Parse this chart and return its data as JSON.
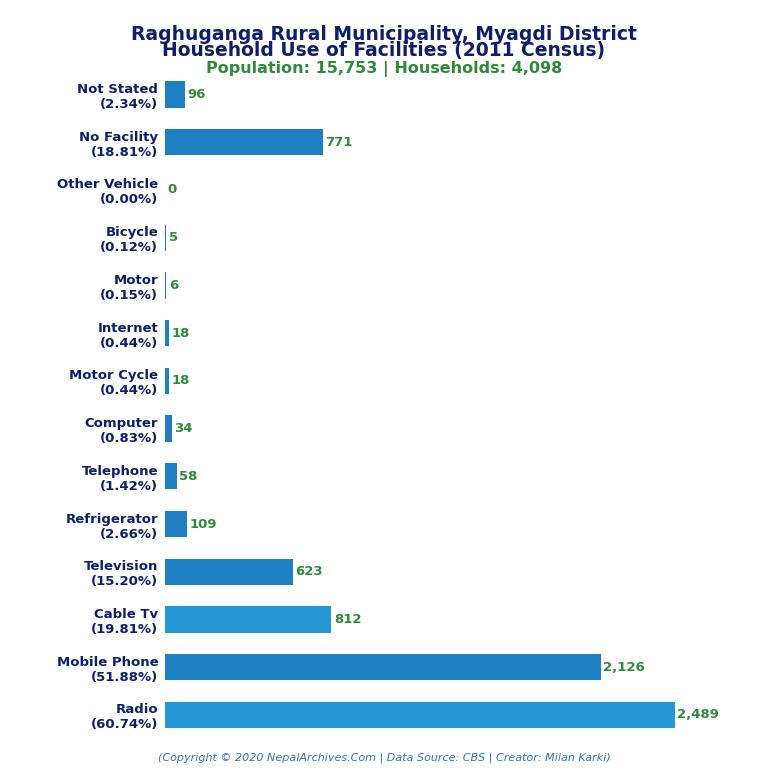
{
  "title_line1": "Raghuganga Rural Municipality, Myagdi District",
  "title_line2": "Household Use of Facilities (2011 Census)",
  "subtitle": "Population: 15,753 | Households: 4,098",
  "footer": "(Copyright © 2020 NepalArchives.Com | Data Source: CBS | Creator: Milan Karki)",
  "categories": [
    "Not Stated\n(2.34%)",
    "No Facility\n(18.81%)",
    "Other Vehicle\n(0.00%)",
    "Bicycle\n(0.12%)",
    "Motor\n(0.15%)",
    "Internet\n(0.44%)",
    "Motor Cycle\n(0.44%)",
    "Computer\n(0.83%)",
    "Telephone\n(1.42%)",
    "Refrigerator\n(2.66%)",
    "Television\n(15.20%)",
    "Cable Tv\n(19.81%)",
    "Mobile Phone\n(51.88%)",
    "Radio\n(60.74%)"
  ],
  "values": [
    96,
    771,
    0,
    5,
    6,
    18,
    18,
    34,
    58,
    109,
    623,
    812,
    2126,
    2489
  ],
  "bar_colors": [
    "#1e7fc2",
    "#1e7fc2",
    "#1e7fc2",
    "#1e7fc2",
    "#1e7fc2",
    "#1e7fc2",
    "#1e7fc2",
    "#1e7fc2",
    "#1e7fc2",
    "#1e7fc2",
    "#1e7fc2",
    "#2497d4",
    "#1e7fc2",
    "#2497d4"
  ],
  "title_color": "#0d1f6b",
  "subtitle_color": "#2e8b3a",
  "footer_color": "#2a7ab0",
  "value_color": "#2e8b3a",
  "label_color": "#0d1f6b",
  "background_color": "#ffffff",
  "xlim": [
    0,
    2700
  ]
}
